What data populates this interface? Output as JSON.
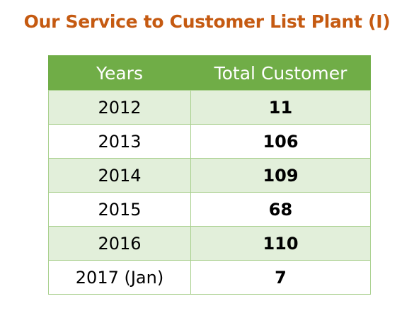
{
  "title": "Our Service to Customer List Plant (I)",
  "colors": {
    "title": "#c55a11",
    "header_bg": "#70ad47",
    "header_text": "#ffffff",
    "band_row": "#e2efda",
    "grid": "#a9d08e"
  },
  "table": {
    "headers": [
      "Years",
      "Total Customer"
    ],
    "rows": [
      {
        "year": "2012",
        "total": "11"
      },
      {
        "year": "2013",
        "total": "106"
      },
      {
        "year": "2014",
        "total": "109"
      },
      {
        "year": "2015",
        "total": "68"
      },
      {
        "year": "2016",
        "total": "110"
      },
      {
        "year": "2017 (Jan)",
        "total": "7"
      }
    ]
  }
}
